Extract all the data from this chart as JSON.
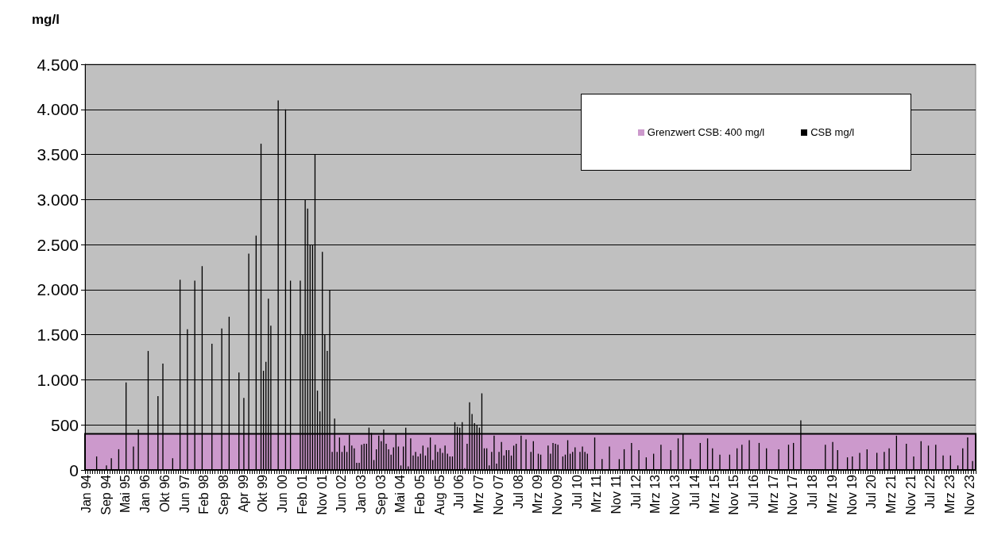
{
  "chart_data": {
    "type": "bar",
    "ylabel": "mg/l",
    "categories": [
      "Jan 94",
      null,
      null,
      null,
      null,
      null,
      null,
      null,
      "Sep 94",
      null,
      null,
      null,
      null,
      null,
      null,
      null,
      "Mai 95",
      null,
      null,
      null,
      null,
      null,
      null,
      null,
      "Jan 96",
      null,
      null,
      null,
      null,
      null,
      null,
      null,
      "Okt 96",
      null,
      null,
      null,
      null,
      null,
      null,
      null,
      "Jun 97",
      null,
      null,
      null,
      null,
      null,
      null,
      null,
      "Feb 98",
      null,
      null,
      null,
      null,
      null,
      null,
      null,
      "Sep 98",
      null,
      null,
      null,
      null,
      null,
      null,
      null,
      "Apr 99",
      null,
      null,
      null,
      null,
      null,
      null,
      null,
      "Okt 99",
      null,
      null,
      null,
      null,
      null,
      null,
      null,
      "Jun 00",
      null,
      null,
      null,
      null,
      null,
      null,
      null,
      "Feb 01",
      null,
      null,
      null,
      null,
      null,
      null,
      null,
      "Nov 01",
      null,
      null,
      null,
      null,
      null,
      null,
      null,
      "Jun 02",
      null,
      null,
      null,
      null,
      null,
      null,
      null,
      "Jan 03",
      null,
      null,
      null,
      null,
      null,
      null,
      null,
      "Sep 03",
      null,
      null,
      null,
      null,
      null,
      null,
      null,
      "Mai 04",
      null,
      null,
      null,
      null,
      null,
      null,
      null,
      "Feb 05",
      null,
      null,
      null,
      null,
      null,
      null,
      null,
      "Aug 05",
      null,
      null,
      null,
      null,
      null,
      null,
      null,
      "Jul 06",
      null,
      null,
      null,
      null,
      null,
      null,
      null,
      "Mrz 07",
      null,
      null,
      null,
      null,
      null,
      null,
      null,
      "Nov 07",
      null,
      null,
      null,
      null,
      null,
      null,
      null,
      "Jul 08",
      null,
      null,
      null,
      null,
      null,
      null,
      null,
      "Mrz 09",
      null,
      null,
      null,
      null,
      null,
      null,
      null,
      "Nov 09",
      null,
      null,
      null,
      null,
      null,
      null,
      null,
      "Jul 10",
      null,
      null,
      null,
      null,
      null,
      null,
      null,
      "Mrz 11",
      null,
      null,
      null,
      null,
      null,
      null,
      null,
      "Nov 11",
      null,
      null,
      null,
      null,
      null,
      null,
      null,
      "Jul 12",
      null,
      null,
      null,
      null,
      null,
      null,
      null,
      "Mrz 13",
      null,
      null,
      null,
      null,
      null,
      null,
      null,
      "Nov 13",
      null,
      null,
      null,
      null,
      null,
      null,
      null,
      "Jul 14",
      null,
      null,
      null,
      null,
      null,
      null,
      null,
      "Mrz 15",
      null,
      null,
      null,
      null,
      null,
      null,
      null,
      "Nov 15",
      null,
      null,
      null,
      null,
      null,
      null,
      null,
      "Jul 16",
      null,
      null,
      null,
      null,
      null,
      null,
      null,
      "Mrz 17",
      null,
      null,
      null,
      null,
      null,
      null,
      null,
      "Nov 17",
      null,
      null,
      null,
      null,
      null,
      null,
      null,
      "Jul 18",
      null,
      null,
      null,
      null,
      null,
      null,
      null,
      "Mrz 19",
      null,
      null,
      null,
      null,
      null,
      null,
      null,
      "Nov 19",
      null,
      null,
      null,
      null,
      null,
      null,
      null,
      "Jul 20",
      null,
      null,
      null,
      null,
      null,
      null,
      null,
      "Mrz 21",
      null,
      null,
      null,
      null,
      null,
      null,
      null,
      "Nov 21",
      null,
      null,
      null,
      null,
      null,
      null,
      null,
      "Jul 22",
      null,
      null,
      null,
      null,
      null,
      null,
      null,
      "Mrz 23",
      null,
      null,
      null,
      null,
      null,
      null,
      null,
      "Nov 23",
      null,
      null
    ],
    "series": [
      {
        "name": "CSB mg/l",
        "color": "#000000",
        "values": [
          null,
          null,
          null,
          null,
          150,
          null,
          null,
          null,
          50,
          null,
          130,
          null,
          null,
          230,
          null,
          null,
          970,
          null,
          null,
          260,
          null,
          450,
          null,
          null,
          null,
          1320,
          null,
          null,
          null,
          820,
          null,
          1180,
          null,
          null,
          null,
          130,
          null,
          null,
          2110,
          null,
          null,
          1560,
          null,
          null,
          2100,
          null,
          null,
          2260,
          null,
          null,
          null,
          1400,
          null,
          null,
          null,
          1570,
          null,
          null,
          1700,
          null,
          null,
          null,
          1080,
          null,
          800,
          null,
          2400,
          null,
          null,
          2600,
          null,
          3620,
          1100,
          1200,
          1900,
          1600,
          null,
          null,
          4100,
          null,
          null,
          4000,
          null,
          2100,
          null,
          null,
          null,
          2100,
          1500,
          3000,
          2900,
          2500,
          2500,
          3500,
          880,
          650,
          2420,
          1500,
          1320,
          2000,
          200,
          570,
          200,
          360,
          200,
          270,
          200,
          390,
          270,
          240,
          80,
          80,
          280,
          290,
          290,
          470,
          410,
          110,
          230,
          380,
          320,
          450,
          290,
          230,
          170,
          250,
          400,
          260,
          50,
          260,
          470,
          40,
          350,
          160,
          200,
          150,
          180,
          270,
          160,
          250,
          360,
          110,
          280,
          200,
          240,
          190,
          270,
          180,
          150,
          150,
          530,
          480,
          470,
          530,
          20,
          290,
          750,
          620,
          520,
          500,
          470,
          850,
          240,
          240,
          50,
          200,
          380,
          70,
          200,
          310,
          160,
          220,
          220,
          160,
          270,
          290,
          null,
          380,
          null,
          340,
          null,
          200,
          320,
          null,
          180,
          170,
          null,
          null,
          270,
          180,
          300,
          290,
          280,
          null,
          150,
          170,
          330,
          180,
          200,
          250,
          null,
          200,
          260,
          200,
          180,
          null,
          null,
          360,
          null,
          null,
          120,
          null,
          null,
          260,
          null,
          null,
          null,
          120,
          null,
          230,
          null,
          null,
          300,
          null,
          null,
          220,
          null,
          null,
          140,
          null,
          null,
          180,
          null,
          null,
          280,
          null,
          null,
          null,
          220,
          null,
          null,
          350,
          null,
          400,
          null,
          null,
          120,
          null,
          null,
          null,
          300,
          null,
          null,
          350,
          null,
          240,
          null,
          null,
          170,
          null,
          null,
          null,
          170,
          null,
          null,
          240,
          null,
          280,
          null,
          null,
          330,
          null,
          null,
          null,
          300,
          null,
          null,
          240,
          null,
          null,
          null,
          null,
          230,
          null,
          null,
          null,
          280,
          null,
          300,
          null,
          null,
          550,
          null,
          null,
          null,
          null,
          null,
          null,
          null,
          null,
          null,
          280,
          null,
          null,
          310,
          null,
          220,
          null,
          null,
          null,
          140,
          null,
          150,
          null,
          null,
          190,
          null,
          null,
          230,
          null,
          null,
          null,
          190,
          null,
          null,
          200,
          null,
          240,
          null,
          null,
          380,
          null,
          null,
          null,
          290,
          null,
          null,
          150,
          null,
          null,
          320,
          null,
          null,
          270,
          null,
          null,
          280,
          null,
          null,
          160,
          null,
          null,
          160,
          null,
          null,
          50,
          null,
          240,
          null,
          360,
          null,
          100,
          null
        ]
      }
    ],
    "bands": [
      {
        "axis": "y",
        "from": 0,
        "to": 400,
        "label": "Grenzwert CSB: 400 mg/l",
        "color": "#cc99cc"
      }
    ],
    "ylim": [
      0,
      4500
    ],
    "yticks": [
      0,
      500,
      {
        "value": 1000,
        "label": "1.000"
      },
      {
        "value": 1500,
        "label": "1.500"
      },
      {
        "value": 2000,
        "label": "2.000"
      },
      {
        "value": 2500,
        "label": "2.500"
      },
      {
        "value": 3000,
        "label": "3.000"
      },
      {
        "value": 3500,
        "label": "3.500"
      },
      {
        "value": 4000,
        "label": "4.000"
      },
      {
        "value": 4500,
        "label": "4.500"
      }
    ],
    "grid": "y",
    "legend": "top right"
  }
}
